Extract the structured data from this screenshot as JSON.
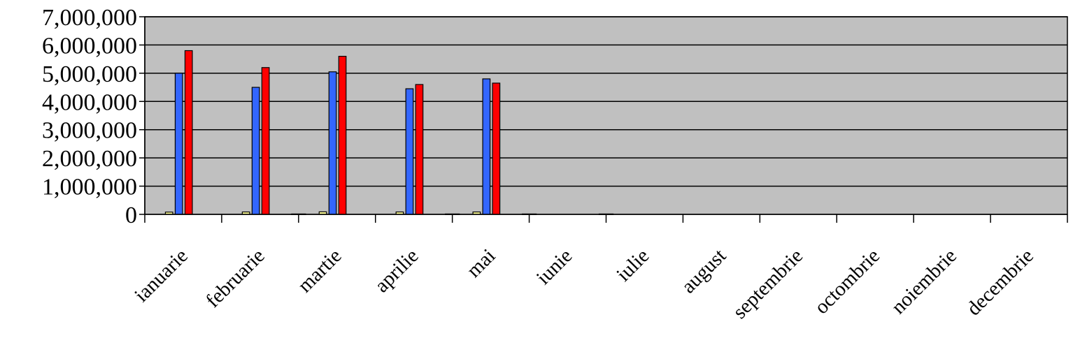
{
  "chart_data": {
    "type": "bar",
    "title": "",
    "xlabel": "",
    "ylabel": "",
    "ylim": [
      0,
      7000000
    ],
    "yticks": [
      "0",
      "1,000,000",
      "2,000,000",
      "3,000,000",
      "4,000,000",
      "5,000,000",
      "6,000,000",
      "7,000,000"
    ],
    "grid": true,
    "legend": "none",
    "categories": [
      "ianuarie",
      "februarie",
      "martie",
      "aprilie",
      "mai",
      "iunie",
      "iulie",
      "august",
      "septembrie",
      "octombrie",
      "noiembrie",
      "decembrie"
    ],
    "series": [
      {
        "color": "#ffff99",
        "values": [
          80000,
          85000,
          90000,
          85000,
          85000,
          null,
          null,
          null,
          null,
          null,
          null,
          null
        ]
      },
      {
        "color": "#3366ff",
        "values": [
          5000000,
          4500000,
          5050000,
          4450000,
          4800000,
          null,
          null,
          null,
          null,
          null,
          null,
          null
        ]
      },
      {
        "color": "#ff0000",
        "values": [
          5800000,
          5200000,
          5600000,
          4600000,
          4650000,
          null,
          null,
          null,
          null,
          null,
          null,
          null
        ]
      },
      {
        "color": "#000000",
        "values": [
          null,
          15000,
          null,
          15000,
          15000,
          15000,
          null,
          null,
          null,
          null,
          null,
          null
        ]
      }
    ],
    "colors": {
      "plot_background": "#c0c0c0",
      "gridline": "#000000"
    }
  }
}
